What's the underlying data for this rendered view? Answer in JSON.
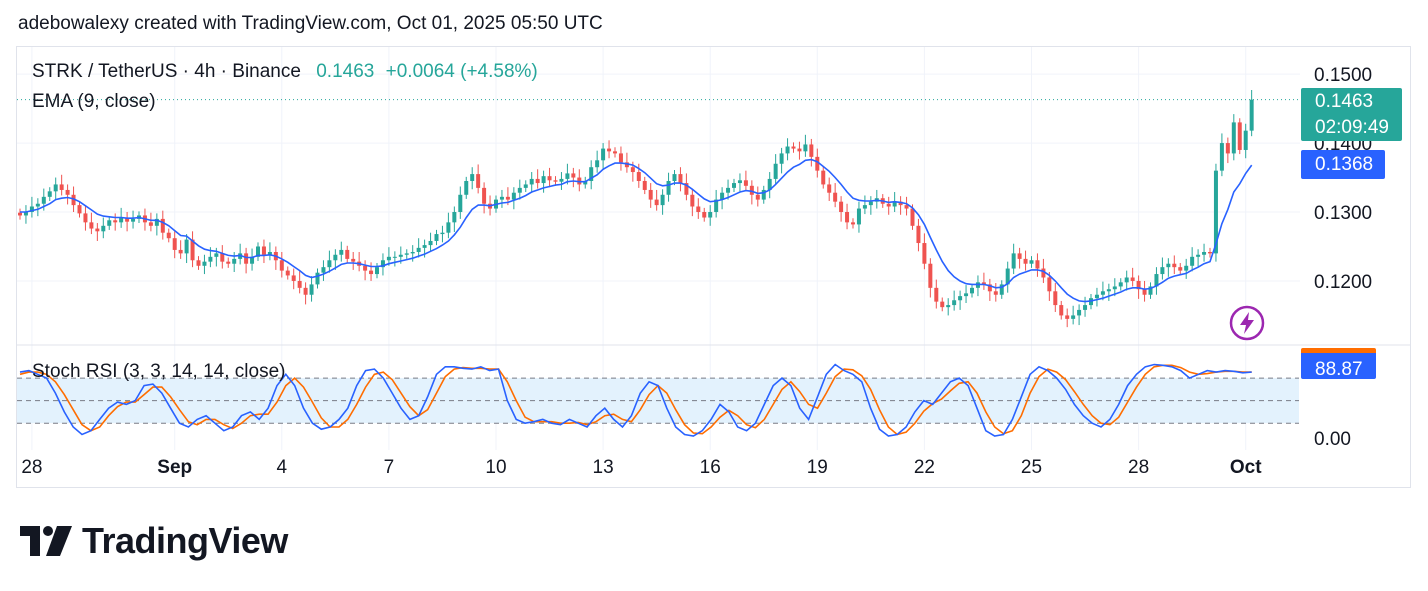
{
  "header": {
    "credit": "adebowalexy created with TradingView.com, Oct 01, 2025 05:50 UTC"
  },
  "legend": {
    "symbol": "STRK / TetherUS · 4h · Binance",
    "price": "0.1463",
    "change": "+0.0064 (+4.58%)",
    "ema_label": "EMA (9, close)",
    "stoch_label": "Stoch RSI (3, 3, 14, 14, close)"
  },
  "price_tag": {
    "price": "0.1463",
    "countdown": "02:09:49"
  },
  "ema_tag": "0.1368",
  "stoch_tag": "88.87",
  "footer": {
    "brand": "TradingView"
  },
  "colors": {
    "up": "#26a69a",
    "down": "#ef5350",
    "ema": "#2962ff",
    "k_line": "#2962ff",
    "d_line": "#ff6d00",
    "band_fill": "#e3f2fd",
    "bolt": "#9c27b0"
  },
  "icons": {
    "bolt": "lightning-bolt-icon",
    "logo": "tradingview-logo-icon"
  },
  "chart_data": {
    "type": "candlestick",
    "symbol": "STRK / TetherUS",
    "interval": "4h",
    "exchange": "Binance",
    "price_axis": {
      "min": 0.111,
      "max": 0.1535,
      "ticks": [
        "0.1500",
        "0.1400",
        "0.1300",
        "0.1200"
      ]
    },
    "stoch_axis": {
      "min": -5,
      "max": 120,
      "ticks": [
        "0.00"
      ],
      "bands": [
        80,
        50,
        20
      ]
    },
    "x_ticks": [
      {
        "label": "28",
        "bar": 2,
        "bold": false
      },
      {
        "label": "Sep",
        "bar": 26,
        "bold": true
      },
      {
        "label": "4",
        "bar": 44,
        "bold": false
      },
      {
        "label": "7",
        "bar": 62,
        "bold": false
      },
      {
        "label": "10",
        "bar": 80,
        "bold": false
      },
      {
        "label": "13",
        "bar": 98,
        "bold": false
      },
      {
        "label": "16",
        "bar": 116,
        "bold": false
      },
      {
        "label": "19",
        "bar": 134,
        "bold": false
      },
      {
        "label": "22",
        "bar": 152,
        "bold": false
      },
      {
        "label": "25",
        "bar": 170,
        "bold": false
      },
      {
        "label": "28",
        "bar": 188,
        "bold": false
      },
      {
        "label": "Oct",
        "bar": 206,
        "bold": true
      }
    ],
    "last_price": 0.1463,
    "ema_last": 0.1368,
    "stoch_last": 88.87,
    "close_series": [
      0.1295,
      0.13,
      0.1308,
      0.1312,
      0.1322,
      0.133,
      0.134,
      0.1332,
      0.1325,
      0.131,
      0.1298,
      0.1285,
      0.1276,
      0.1272,
      0.128,
      0.1288,
      0.1285,
      0.1292,
      0.1286,
      0.129,
      0.1295,
      0.1285,
      0.128,
      0.129,
      0.127,
      0.1262,
      0.1245,
      0.124,
      0.126,
      0.123,
      0.1222,
      0.1228,
      0.1235,
      0.124,
      0.1228,
      0.1225,
      0.1232,
      0.124,
      0.1225,
      0.1235,
      0.125,
      0.1238,
      0.1242,
      0.123,
      0.1215,
      0.1208,
      0.12,
      0.119,
      0.118,
      0.1195,
      0.1212,
      0.122,
      0.123,
      0.1238,
      0.1245,
      0.1232,
      0.1228,
      0.1222,
      0.1215,
      0.121,
      0.122,
      0.123,
      0.1235,
      0.1235,
      0.1238,
      0.124,
      0.1242,
      0.1248,
      0.1252,
      0.1258,
      0.1268,
      0.127,
      0.1285,
      0.13,
      0.1325,
      0.1345,
      0.1355,
      0.1335,
      0.1312,
      0.1305,
      0.1318,
      0.1322,
      0.1318,
      0.1328,
      0.1335,
      0.134,
      0.1348,
      0.1342,
      0.1352,
      0.1346,
      0.1344,
      0.1348,
      0.1356,
      0.135,
      0.134,
      0.1345,
      0.1365,
      0.1375,
      0.1392,
      0.1388,
      0.1385,
      0.1372,
      0.1365,
      0.1358,
      0.1345,
      0.1332,
      0.1318,
      0.131,
      0.1325,
      0.1345,
      0.1355,
      0.1342,
      0.1325,
      0.1308,
      0.13,
      0.1292,
      0.13,
      0.1318,
      0.1328,
      0.1335,
      0.1342,
      0.1346,
      0.1338,
      0.1325,
      0.1318,
      0.1332,
      0.1348,
      0.137,
      0.1385,
      0.1395,
      0.1392,
      0.1388,
      0.1398,
      0.138,
      0.136,
      0.134,
      0.1328,
      0.1315,
      0.13,
      0.1285,
      0.1282,
      0.1305,
      0.131,
      0.1315,
      0.132,
      0.1312,
      0.1308,
      0.1315,
      0.131,
      0.1305,
      0.128,
      0.1255,
      0.1225,
      0.119,
      0.117,
      0.1162,
      0.1165,
      0.1172,
      0.1178,
      0.1182,
      0.119,
      0.1198,
      0.1195,
      0.1185,
      0.118,
      0.1195,
      0.1218,
      0.124,
      0.1232,
      0.1225,
      0.123,
      0.1218,
      0.1205,
      0.1185,
      0.1165,
      0.115,
      0.1145,
      0.115,
      0.1158,
      0.1165,
      0.1175,
      0.118,
      0.1185,
      0.1188,
      0.1192,
      0.1198,
      0.1205,
      0.12,
      0.1188,
      0.118,
      0.1192,
      0.121,
      0.122,
      0.1225,
      0.122,
      0.1215,
      0.1222,
      0.1235,
      0.1238,
      0.1242,
      0.124,
      0.136,
      0.14,
      0.1385,
      0.143,
      0.139,
      0.1418,
      0.1463
    ],
    "ema_series": [
      0.13,
      0.13,
      0.1302,
      0.1304,
      0.1308,
      0.1312,
      0.1318,
      0.132,
      0.1321,
      0.1319,
      0.1315,
      0.1309,
      0.1303,
      0.1297,
      0.1294,
      0.1293,
      0.1292,
      0.1292,
      0.1291,
      0.1291,
      0.1292,
      0.129,
      0.1288,
      0.1288,
      0.1285,
      0.128,
      0.1273,
      0.1266,
      0.1265,
      0.1258,
      0.1251,
      0.1246,
      0.1244,
      0.1243,
      0.124,
      0.1237,
      0.1236,
      0.1237,
      0.1234,
      0.1234,
      0.1237,
      0.1237,
      0.1238,
      0.1236,
      0.1232,
      0.1227,
      0.1221,
      0.1215,
      0.1208,
      0.1205,
      0.1207,
      0.121,
      0.1214,
      0.1219,
      0.1224,
      0.1226,
      0.1226,
      0.1225,
      0.1223,
      0.1221,
      0.1221,
      0.1222,
      0.1225,
      0.1227,
      0.1229,
      0.1231,
      0.1233,
      0.1236,
      0.1239,
      0.1243,
      0.1247,
      0.1252,
      0.1258,
      0.1267,
      0.1278,
      0.1292,
      0.1304,
      0.131,
      0.131,
      0.1309,
      0.1311,
      0.1313,
      0.1314,
      0.1317,
      0.132,
      0.1324,
      0.1329,
      0.1332,
      0.1335,
      0.1337,
      0.1339,
      0.134,
      0.1344,
      0.1345,
      0.1344,
      0.1344,
      0.1349,
      0.1354,
      0.1362,
      0.1367,
      0.1371,
      0.1371,
      0.137,
      0.1368,
      0.1363,
      0.1357,
      0.1349,
      0.1341,
      0.1338,
      0.1339,
      0.1342,
      0.1342,
      0.1339,
      0.1333,
      0.1326,
      0.1319,
      0.1315,
      0.1316,
      0.1318,
      0.1321,
      0.1325,
      0.1329,
      0.1331,
      0.133,
      0.1327,
      0.1328,
      0.1332,
      0.134,
      0.1349,
      0.1358,
      0.1365,
      0.1369,
      0.1375,
      0.1376,
      0.1373,
      0.1366,
      0.1359,
      0.135,
      0.134,
      0.1329,
      0.132,
      0.1317,
      0.1316,
      0.1316,
      0.1317,
      0.1316,
      0.1314,
      0.1315,
      0.1314,
      0.1312,
      0.1306,
      0.1296,
      0.1282,
      0.1263,
      0.1245,
      0.1228,
      0.1215,
      0.1206,
      0.12,
      0.1196,
      0.1195,
      0.1195,
      0.1195,
      0.1193,
      0.119,
      0.1191,
      0.1196,
      0.1205,
      0.121,
      0.1213,
      0.1216,
      0.1216,
      0.1214,
      0.1208,
      0.12,
      0.119,
      0.1181,
      0.1175,
      0.1171,
      0.117,
      0.1171,
      0.1173,
      0.1175,
      0.1178,
      0.1181,
      0.1184,
      0.1188,
      0.119,
      0.119,
      0.1188,
      0.1189,
      0.1193,
      0.1198,
      0.1204,
      0.1207,
      0.1209,
      0.1211,
      0.1216,
      0.122,
      0.1225,
      0.1228,
      0.1254,
      0.1283,
      0.1304,
      0.1329,
      0.1341,
      0.1356,
      0.1368
    ],
    "stoch_k": [
      88,
      90,
      85,
      80,
      60,
      35,
      15,
      5,
      10,
      25,
      40,
      48,
      45,
      50,
      70,
      72,
      60,
      40,
      20,
      15,
      25,
      30,
      20,
      10,
      15,
      30,
      35,
      25,
      40,
      70,
      85,
      70,
      40,
      20,
      12,
      15,
      25,
      40,
      70,
      90,
      92,
      80,
      60,
      40,
      25,
      30,
      55,
      85,
      95,
      95,
      93,
      92,
      95,
      90,
      92,
      50,
      25,
      20,
      22,
      25,
      20,
      18,
      25,
      20,
      15,
      30,
      40,
      25,
      15,
      30,
      60,
      75,
      70,
      40,
      15,
      5,
      3,
      10,
      25,
      45,
      35,
      15,
      10,
      20,
      45,
      70,
      80,
      70,
      40,
      25,
      55,
      85,
      98,
      90,
      85,
      75,
      40,
      12,
      3,
      5,
      15,
      35,
      50,
      45,
      60,
      75,
      80,
      70,
      40,
      10,
      3,
      5,
      25,
      55,
      85,
      95,
      90,
      80,
      65,
      45,
      30,
      20,
      15,
      25,
      45,
      70,
      85,
      95,
      98,
      97,
      95,
      90,
      80,
      85,
      90,
      88,
      90,
      89,
      87,
      88
    ],
    "stoch_d": [
      85,
      88,
      88,
      85,
      75,
      58,
      38,
      18,
      10,
      15,
      30,
      42,
      48,
      48,
      58,
      68,
      68,
      55,
      38,
      22,
      18,
      25,
      25,
      18,
      13,
      20,
      30,
      32,
      32,
      48,
      70,
      80,
      68,
      48,
      27,
      15,
      15,
      25,
      45,
      68,
      85,
      88,
      78,
      60,
      42,
      30,
      38,
      60,
      82,
      92,
      94,
      93,
      93,
      92,
      92,
      75,
      50,
      28,
      22,
      22,
      22,
      20,
      20,
      21,
      18,
      22,
      30,
      32,
      25,
      22,
      38,
      58,
      70,
      60,
      38,
      18,
      7,
      6,
      15,
      28,
      37,
      30,
      18,
      14,
      25,
      45,
      65,
      75,
      62,
      45,
      40,
      60,
      82,
      92,
      91,
      83,
      65,
      38,
      15,
      5,
      8,
      20,
      36,
      46,
      52,
      63,
      73,
      75,
      60,
      35,
      15,
      6,
      10,
      30,
      60,
      82,
      92,
      88,
      78,
      62,
      45,
      30,
      20,
      18,
      28,
      48,
      68,
      85,
      95,
      97,
      97,
      94,
      88,
      85,
      86,
      88,
      89,
      89,
      88,
      88
    ]
  }
}
